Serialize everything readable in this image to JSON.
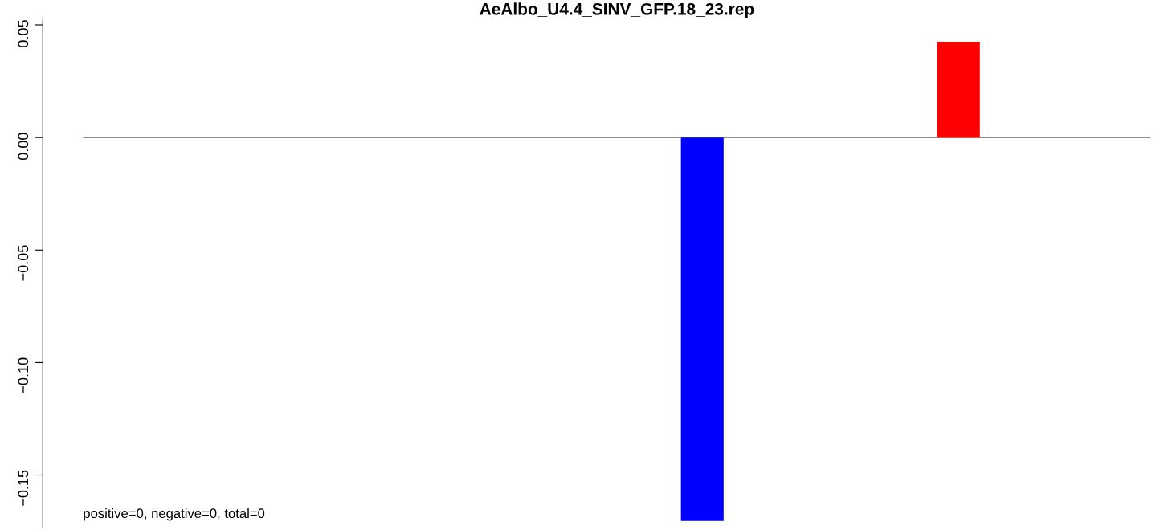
{
  "chart_data": {
    "type": "bar",
    "title": "AeAlbo_U4.4_SINV_GFP.18_23.rep",
    "categories": [
      null,
      null,
      null,
      null,
      null,
      null,
      null,
      null,
      null,
      null,
      null,
      null,
      null,
      null,
      null,
      null,
      null,
      null,
      null,
      null,
      null,
      null,
      null,
      null,
      null
    ],
    "values": [
      0,
      0,
      0,
      0,
      0,
      0,
      0,
      0,
      0,
      0,
      0,
      0,
      0,
      0,
      -0.1704,
      0,
      0,
      0,
      0,
      0,
      0.0425,
      0,
      0,
      0,
      0
    ],
    "colors": [
      null,
      null,
      null,
      null,
      null,
      null,
      null,
      null,
      null,
      null,
      null,
      null,
      null,
      null,
      "#0000ff",
      null,
      null,
      null,
      null,
      null,
      "#ff0000",
      null,
      null,
      null,
      null
    ],
    "ylim": [
      -0.173,
      0.0525
    ],
    "yticks": [
      {
        "value": -0.15,
        "label": "−0.15"
      },
      {
        "value": -0.1,
        "label": "−0.10"
      },
      {
        "value": -0.05,
        "label": "−0.05"
      },
      {
        "value": 0,
        "label": "0.00"
      },
      {
        "value": 0.05,
        "label": "0.05"
      }
    ],
    "ref_lines": [
      {
        "axis": "y",
        "value": 0,
        "label": null,
        "color": "#666666"
      }
    ],
    "annotations": [
      "positive=0, negative=0, total=0"
    ],
    "tick_labels": "y",
    "grid": false,
    "legend": false
  }
}
